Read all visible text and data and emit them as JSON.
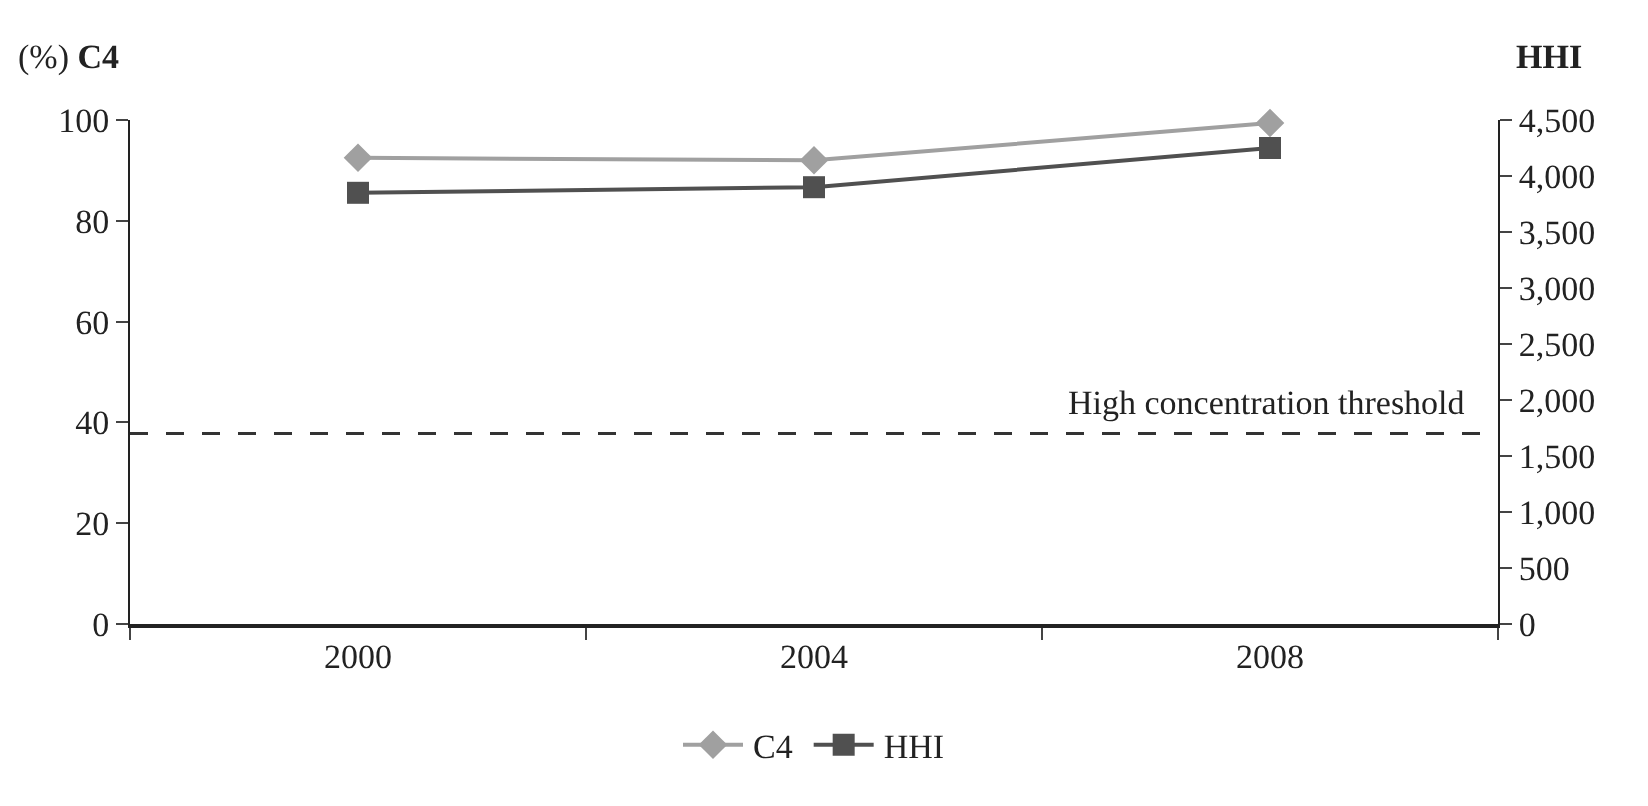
{
  "chart_data": {
    "type": "line",
    "ylabel": "(%) C4",
    "y2label": "HHI",
    "categories": [
      "2000",
      "2004",
      "2008"
    ],
    "series": [
      {
        "name": "C4",
        "color": "#a0a0a0",
        "marker": "diamond",
        "values": [
          92.5,
          92,
          99.4
        ]
      },
      {
        "name": "HHI",
        "color": "#505050",
        "marker": "square",
        "axis": "y2",
        "values": [
          3850,
          3900,
          4250
        ]
      }
    ],
    "ylim": [
      0,
      100
    ],
    "yticks": [
      0,
      20,
      40,
      60,
      80,
      100
    ],
    "y2lim": [
      0,
      4500
    ],
    "y2ticks": [
      {
        "value": 0,
        "label": "0"
      },
      {
        "value": 500,
        "label": "500"
      },
      {
        "value": 1000,
        "label": "1,000"
      },
      {
        "value": 1500,
        "label": "1,500"
      },
      {
        "value": 2000,
        "label": "2,000"
      },
      {
        "value": 2500,
        "label": "2,500"
      },
      {
        "value": 3000,
        "label": "3,000"
      },
      {
        "value": 3500,
        "label": "3,500"
      },
      {
        "value": 4000,
        "label": "4,000"
      },
      {
        "value": 4500,
        "label": "4,500"
      }
    ],
    "ref_lines": [
      {
        "axis": "y2",
        "value": 1700,
        "label": "High concentration threshold",
        "color": "#333333",
        "line_style": "dashed"
      }
    ],
    "legend": "bottom",
    "line_style": "solid"
  }
}
